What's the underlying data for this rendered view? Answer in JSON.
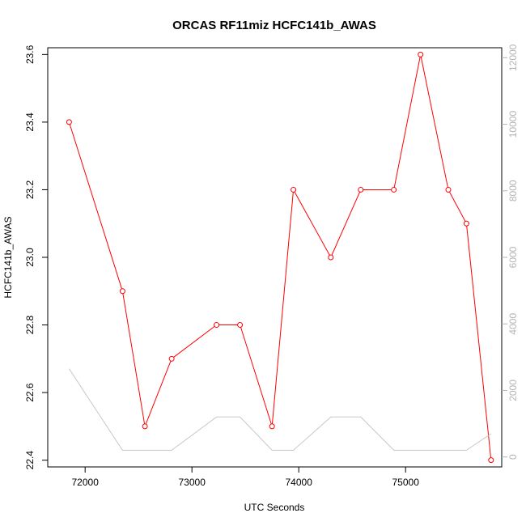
{
  "chart_data": {
    "type": "line",
    "title": "ORCAS RF11miz HCFC141b_AWAS",
    "xlabel": "UTC Seconds",
    "ylabel": "HCFC141b_AWAS",
    "xlim": [
      71650,
      75900
    ],
    "ylim": [
      22.38,
      23.62
    ],
    "y2lim": [
      -300,
      12300
    ],
    "x_ticks": [
      72000,
      73000,
      74000,
      75000
    ],
    "y_ticks": [
      22.4,
      22.6,
      22.8,
      23.0,
      23.2,
      23.4,
      23.6
    ],
    "y2_ticks": [
      0,
      2000,
      4000,
      6000,
      8000,
      10000,
      12000
    ],
    "x_tick_labels": [
      "72000",
      "73000",
      "74000",
      "75000"
    ],
    "y_tick_labels": [
      "22.4",
      "22.6",
      "22.8",
      "23.0",
      "23.2",
      "23.4",
      "23.6"
    ],
    "y2_tick_labels": [
      "0",
      "2000",
      "4000",
      "6000",
      "8000",
      "10000",
      "12000"
    ],
    "grid": false,
    "series": [
      {
        "axis": "left",
        "color": "#ff0000",
        "markers": "open-circle",
        "x": [
          71850,
          72350,
          72560,
          72810,
          73230,
          73450,
          73750,
          73950,
          74300,
          74580,
          74890,
          75140,
          75400,
          75570,
          75800
        ],
        "y": [
          23.4,
          22.9,
          22.5,
          22.7,
          22.8,
          22.8,
          22.5,
          23.2,
          23.0,
          23.2,
          23.2,
          23.6,
          23.2,
          23.1,
          22.4
        ]
      },
      {
        "axis": "right",
        "color": "#c8c8c8",
        "markers": "none",
        "x": [
          71850,
          72350,
          72560,
          72810,
          73230,
          73450,
          73750,
          73950,
          74300,
          74580,
          74890,
          75140,
          75400,
          75570,
          75800
        ],
        "y": [
          2650,
          200,
          200,
          200,
          1200,
          1200,
          200,
          200,
          1200,
          1200,
          200,
          200,
          200,
          200,
          700
        ]
      }
    ]
  }
}
